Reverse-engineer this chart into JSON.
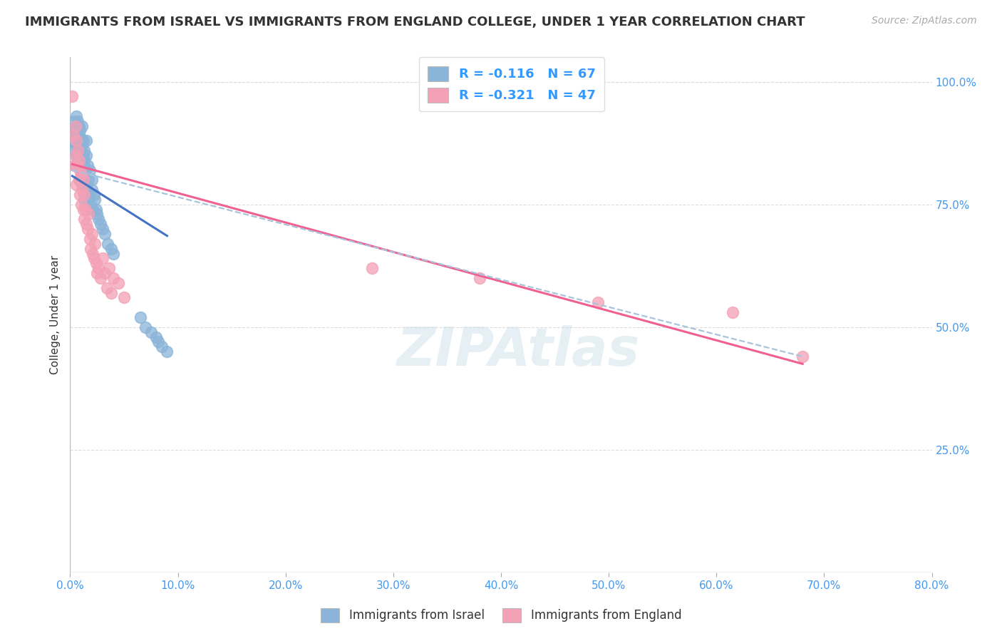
{
  "title": "IMMIGRANTS FROM ISRAEL VS IMMIGRANTS FROM ENGLAND COLLEGE, UNDER 1 YEAR CORRELATION CHART",
  "source": "Source: ZipAtlas.com",
  "ylabel": "College, Under 1 year",
  "right_yticks": [
    "100.0%",
    "75.0%",
    "50.0%",
    "25.0%"
  ],
  "right_ytick_vals": [
    1.0,
    0.75,
    0.5,
    0.25
  ],
  "r_israel": -0.116,
  "n_israel": 67,
  "r_england": -0.321,
  "n_england": 47,
  "xlim": [
    0.0,
    0.8
  ],
  "ylim": [
    0.0,
    1.05
  ],
  "israel_color": "#8ab4d8",
  "england_color": "#f4a0b5",
  "israel_line_color": "#4472c4",
  "england_line_color": "#f06090",
  "trend_line_color": "#a8c4dc",
  "watermark": "ZIPAtlas",
  "israel_x": [
    0.002,
    0.003,
    0.004,
    0.004,
    0.005,
    0.005,
    0.005,
    0.006,
    0.006,
    0.006,
    0.007,
    0.007,
    0.007,
    0.007,
    0.008,
    0.008,
    0.008,
    0.008,
    0.009,
    0.009,
    0.009,
    0.01,
    0.01,
    0.01,
    0.01,
    0.011,
    0.011,
    0.011,
    0.012,
    0.012,
    0.012,
    0.012,
    0.013,
    0.013,
    0.013,
    0.014,
    0.014,
    0.015,
    0.015,
    0.015,
    0.016,
    0.016,
    0.017,
    0.018,
    0.018,
    0.019,
    0.02,
    0.02,
    0.021,
    0.022,
    0.023,
    0.024,
    0.025,
    0.026,
    0.028,
    0.03,
    0.032,
    0.035,
    0.038,
    0.04,
    0.065,
    0.07,
    0.075,
    0.08,
    0.082,
    0.085,
    0.09
  ],
  "israel_y": [
    0.88,
    0.9,
    0.86,
    0.92,
    0.83,
    0.91,
    0.89,
    0.87,
    0.85,
    0.93,
    0.84,
    0.88,
    0.92,
    0.86,
    0.8,
    0.89,
    0.85,
    0.91,
    0.83,
    0.87,
    0.9,
    0.82,
    0.86,
    0.88,
    0.84,
    0.79,
    0.87,
    0.91,
    0.83,
    0.85,
    0.8,
    0.88,
    0.76,
    0.84,
    0.86,
    0.78,
    0.82,
    0.79,
    0.85,
    0.88,
    0.76,
    0.83,
    0.8,
    0.77,
    0.82,
    0.75,
    0.78,
    0.8,
    0.74,
    0.77,
    0.76,
    0.74,
    0.73,
    0.72,
    0.71,
    0.7,
    0.69,
    0.67,
    0.66,
    0.65,
    0.52,
    0.5,
    0.49,
    0.48,
    0.47,
    0.46,
    0.45
  ],
  "england_x": [
    0.002,
    0.003,
    0.004,
    0.005,
    0.005,
    0.006,
    0.006,
    0.007,
    0.007,
    0.008,
    0.008,
    0.009,
    0.009,
    0.01,
    0.01,
    0.011,
    0.012,
    0.012,
    0.013,
    0.013,
    0.014,
    0.015,
    0.016,
    0.017,
    0.018,
    0.019,
    0.02,
    0.021,
    0.022,
    0.023,
    0.024,
    0.025,
    0.026,
    0.028,
    0.03,
    0.032,
    0.034,
    0.036,
    0.038,
    0.04,
    0.045,
    0.05,
    0.28,
    0.38,
    0.49,
    0.615,
    0.68
  ],
  "england_y": [
    0.97,
    0.89,
    0.83,
    0.85,
    0.91,
    0.79,
    0.88,
    0.83,
    0.86,
    0.8,
    0.84,
    0.77,
    0.82,
    0.75,
    0.81,
    0.78,
    0.74,
    0.8,
    0.72,
    0.77,
    0.74,
    0.71,
    0.7,
    0.73,
    0.68,
    0.66,
    0.69,
    0.65,
    0.64,
    0.67,
    0.63,
    0.61,
    0.62,
    0.6,
    0.64,
    0.61,
    0.58,
    0.62,
    0.57,
    0.6,
    0.59,
    0.56,
    0.62,
    0.6,
    0.55,
    0.53,
    0.44
  ],
  "israel_trend_x": [
    0.002,
    0.09
  ],
  "israel_trend_y": [
    0.808,
    0.686
  ],
  "england_trend_x": [
    0.002,
    0.68
  ],
  "england_trend_y": [
    0.832,
    0.425
  ],
  "dashed_trend_x": [
    0.002,
    0.68
  ],
  "dashed_trend_y": [
    0.82,
    0.44
  ]
}
